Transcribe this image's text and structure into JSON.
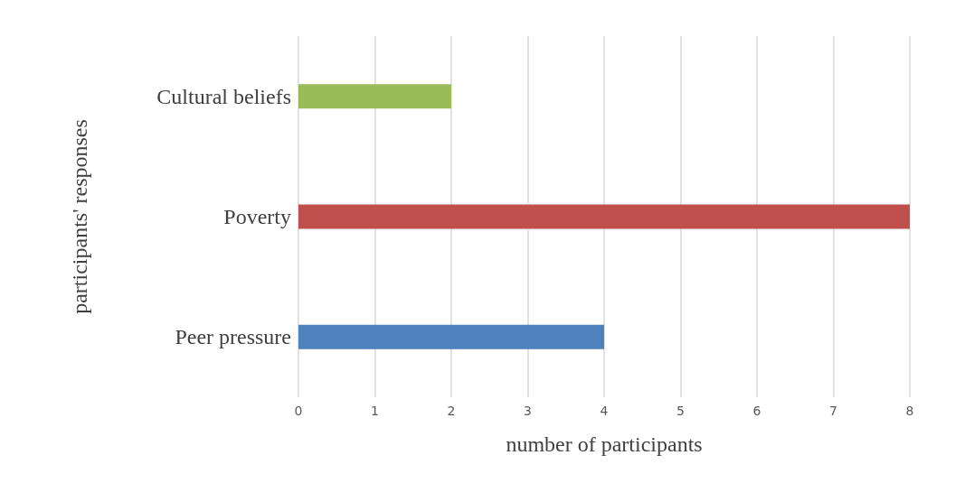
{
  "chart_data": {
    "type": "bar",
    "orientation": "horizontal",
    "categories": [
      "Cultural beliefs",
      "Poverty",
      "Peer pressure"
    ],
    "values": [
      2,
      8,
      4
    ],
    "colors": [
      "#9bbb59",
      "#c0504d",
      "#4f81bd"
    ],
    "xlabel": "number of participants",
    "ylabel": "participants' responses",
    "xlim": [
      0,
      8
    ],
    "xticks": [
      0,
      1,
      2,
      3,
      4,
      5,
      6,
      7,
      8
    ],
    "grid": "x"
  }
}
